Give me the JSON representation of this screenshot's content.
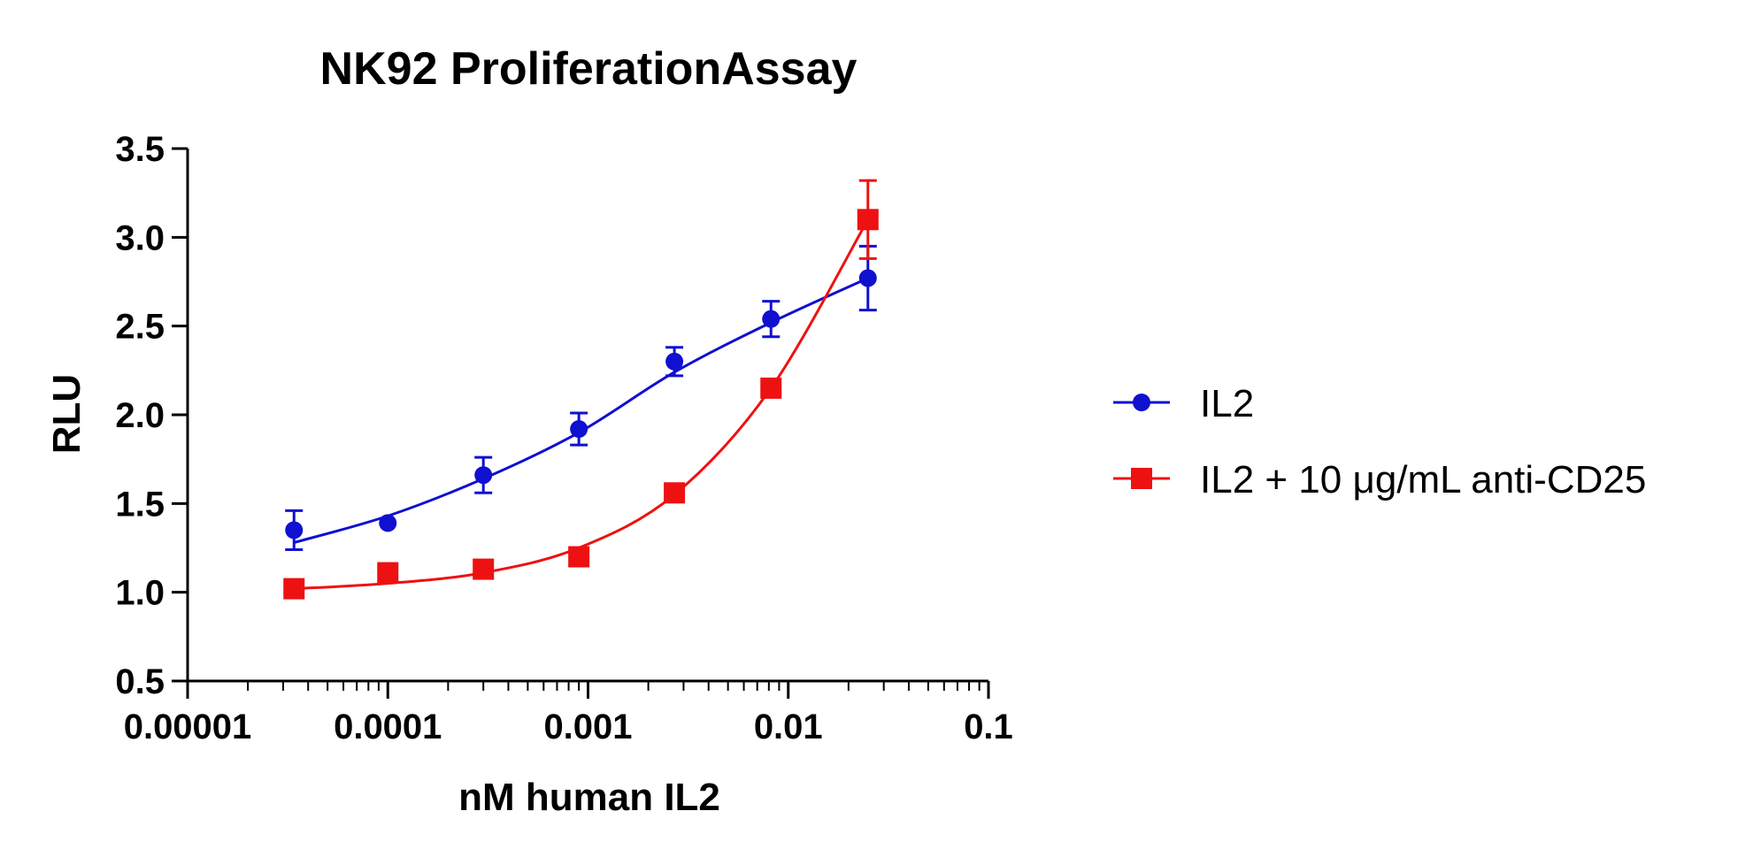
{
  "chart_data": {
    "type": "scatter",
    "title": "NK92  ProliferationAssay",
    "xlabel": "nM human IL2",
    "ylabel": "RLU",
    "x_scale": "log",
    "xlim": [
      1e-05,
      0.1
    ],
    "ylim": [
      0.5,
      3.5
    ],
    "x_tick_labels": [
      "0.00001",
      "0.0001",
      "0.001",
      "0.01",
      "0.1"
    ],
    "y_tick_labels": [
      "0.5",
      "1.0",
      "1.5",
      "2.0",
      "2.5",
      "3.0",
      "3.5"
    ],
    "legend_position": "right",
    "grid": false,
    "series": [
      {
        "name": "IL2",
        "marker": "circle",
        "color": "#1010d0",
        "x": [
          3.4e-05,
          0.0001,
          0.0003,
          0.0009,
          0.0027,
          0.0082,
          0.025
        ],
        "y": [
          1.35,
          1.39,
          1.66,
          1.92,
          2.3,
          2.54,
          2.77
        ],
        "error": [
          0.11,
          0.0,
          0.1,
          0.09,
          0.08,
          0.1,
          0.18
        ],
        "fit_y": [
          1.28,
          1.43,
          1.64,
          1.9,
          2.24,
          2.52,
          2.77
        ]
      },
      {
        "name": "IL2 + 10 μg/mL anti-CD25",
        "marker": "square",
        "color": "#ee1111",
        "x": [
          3.4e-05,
          0.0001,
          0.0003,
          0.0009,
          0.0027,
          0.0082,
          0.025
        ],
        "y": [
          1.02,
          1.11,
          1.13,
          1.2,
          1.56,
          2.15,
          3.1
        ],
        "error": [
          0.0,
          0.0,
          0.0,
          0.0,
          0.0,
          0.0,
          0.22
        ],
        "fit_y": [
          1.02,
          1.05,
          1.11,
          1.25,
          1.55,
          2.15,
          3.1
        ]
      }
    ]
  }
}
